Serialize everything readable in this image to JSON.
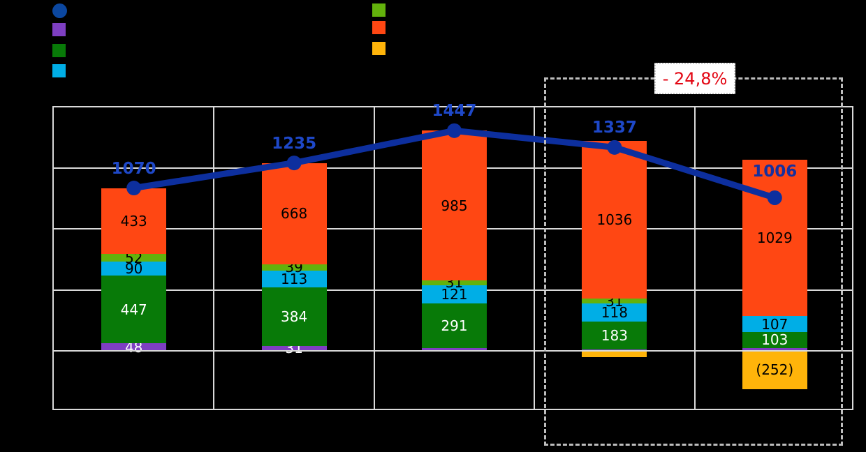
{
  "chart_data": {
    "type": "combo-stacked-bar-line",
    "n_columns": 5,
    "ylim": [
      -400,
      1600
    ],
    "grid_interval": 400,
    "grid": true,
    "line": {
      "name": "total-line",
      "values": [
        1070,
        1235,
        1447,
        1337,
        1006
      ],
      "labels": [
        "1070",
        "1235",
        "1447",
        "1337",
        "1006"
      ],
      "color": "#0D2F9E",
      "label_color": "#1E48C8",
      "final_label_color": "#16309E"
    },
    "bar_series": [
      {
        "name": "purple",
        "color": "#7E3FC2",
        "label_color": "#FFFFFF",
        "values": [
          48,
          31,
          19,
          10,
          19
        ],
        "labels": [
          "48",
          "31",
          "",
          "",
          ""
        ]
      },
      {
        "name": "dark-green",
        "color": "#087A08",
        "label_color": "#FFFFFF",
        "values": [
          447,
          384,
          291,
          183,
          103
        ],
        "labels": [
          "447",
          "384",
          "291",
          "183",
          "103"
        ]
      },
      {
        "name": "cyan",
        "color": "#00AEE6",
        "label_color": "#000000",
        "values": [
          90,
          113,
          121,
          118,
          107
        ],
        "labels": [
          "90",
          "113",
          "121",
          "118",
          "107"
        ]
      },
      {
        "name": "yellow-green",
        "color": "#63B20C",
        "label_color": "#000000",
        "values": [
          52,
          39,
          31,
          31,
          0
        ],
        "labels": [
          "52",
          "39",
          "31",
          "31",
          ""
        ]
      },
      {
        "name": "orange",
        "color": "#FF4713",
        "label_color": "#000000",
        "values": [
          433,
          668,
          985,
          1036,
          1029
        ],
        "labels": [
          "433",
          "668",
          "985",
          "1036",
          "1029"
        ]
      },
      {
        "name": "amber",
        "color": "#FFB40A",
        "label_color": "#000000",
        "values": [
          0,
          0,
          0,
          -41,
          -252
        ],
        "labels": [
          "",
          "",
          "",
          "",
          "(252)"
        ]
      }
    ]
  },
  "legend": {
    "left": [
      {
        "name": "total-line",
        "shape": "circle",
        "color": "#0B47A0"
      },
      {
        "name": "purple",
        "shape": "square",
        "color": "#7E3FC2"
      },
      {
        "name": "dark-green",
        "shape": "square",
        "color": "#087A08"
      },
      {
        "name": "cyan",
        "shape": "square",
        "color": "#00AEE6"
      }
    ],
    "right": [
      {
        "name": "yellow-green",
        "shape": "square",
        "color": "#63B20C"
      },
      {
        "name": "orange",
        "shape": "square",
        "color": "#FF4713"
      },
      {
        "name": "amber",
        "shape": "square",
        "color": "#FFB40A"
      }
    ]
  },
  "annotation": {
    "label": "- 24,8%",
    "text_color": "#E30613"
  }
}
